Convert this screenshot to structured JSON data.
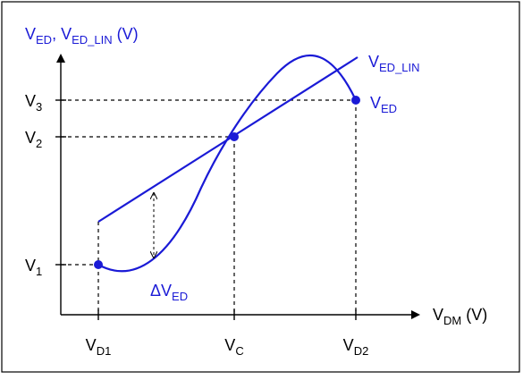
{
  "colors": {
    "curve": "#1a1ad6",
    "axis": "#000000",
    "guide": "#000000",
    "frame": "#000000"
  },
  "y_axis_label": {
    "part1_main": "V",
    "part1_sub": "ED",
    "sep": ", V",
    "part2_sub": "ED_LIN",
    "unit": " (V)"
  },
  "x_axis_label": {
    "main": "V",
    "sub": "DM",
    "unit": " (V)"
  },
  "y_ticks": [
    {
      "main": "V",
      "sub": "3"
    },
    {
      "main": "V",
      "sub": "2"
    },
    {
      "main": "V",
      "sub": "1"
    }
  ],
  "x_ticks": [
    {
      "main": "V",
      "sub": "D1"
    },
    {
      "main": "V",
      "sub": "C"
    },
    {
      "main": "V",
      "sub": "D2"
    }
  ],
  "curve_labels": {
    "lin": {
      "main": "V",
      "sub": "ED_LIN"
    },
    "ed": {
      "main": "V",
      "sub": "ED"
    },
    "delta": {
      "main": "ΔV",
      "sub": "ED"
    }
  },
  "icons": {
    "y_arrow": "arrow-up-icon",
    "x_arrow": "arrow-right-icon",
    "delta_arrow": "double-arrow-icon"
  }
}
